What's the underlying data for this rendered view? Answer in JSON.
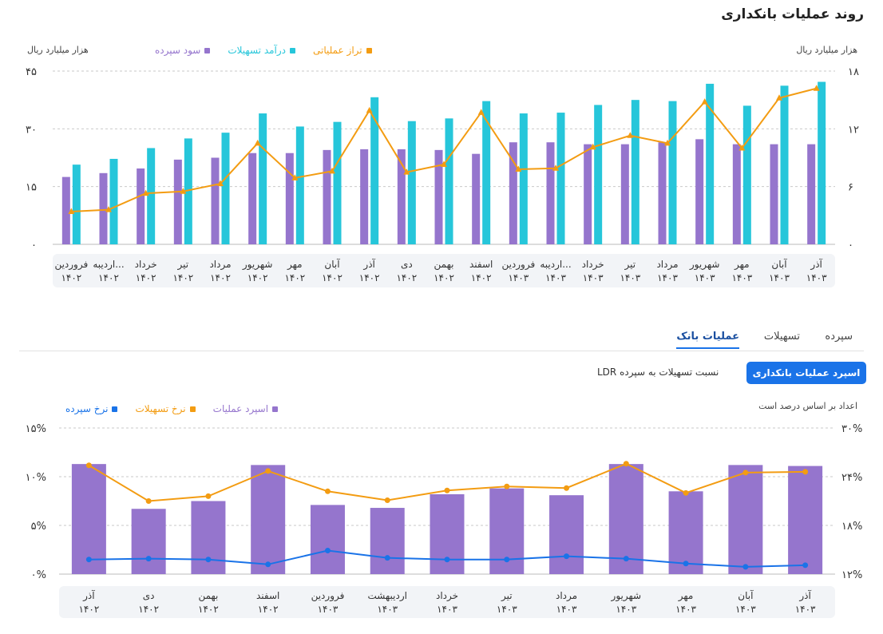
{
  "page": {
    "title": "روند عملیات بانکداری"
  },
  "top": {
    "unit_left": "هزار میلیارد ریال",
    "unit_right": "هزار میلیارد ریال",
    "legend": [
      {
        "label": "تراز عملیاتی",
        "color": "#f39c12"
      },
      {
        "label": "درآمد تسهیلات",
        "color": "#26c6da"
      },
      {
        "label": "سود سپرده",
        "color": "#9575cd"
      }
    ],
    "y_left_ticks": [
      "۰",
      "۱۵",
      "۳۰",
      "۴۵"
    ],
    "y_right_ticks": [
      "۰",
      "۶",
      "۱۲",
      "۱۸"
    ]
  },
  "tabs": [
    {
      "label": "سپرده"
    },
    {
      "label": "تسهیلات"
    },
    {
      "label": "عملیات بانک",
      "active": true
    }
  ],
  "segment": {
    "active": "اسپرد عملیات بانکداری",
    "other": "نسبت تسهیلات به سپرده LDR"
  },
  "bottom": {
    "unit": "اعداد بر اساس درصد است",
    "legend": [
      {
        "label": "اسپرد عملیات",
        "color": "#9575cd"
      },
      {
        "label": "نرخ تسهیلات",
        "color": "#f39c12"
      },
      {
        "label": "نرخ سپرده",
        "color": "#1a73e8"
      }
    ],
    "y_left_ticks": [
      "۰%",
      "۵%",
      "۱۰%",
      "۱۵%"
    ],
    "y_right_ticks": [
      "۱۲%",
      "۱۸%",
      "۲۴%",
      "۳۰%"
    ]
  },
  "chart_data": [
    {
      "type": "bar",
      "title": "روند عملیات بانکداری",
      "categories": [
        [
          "فروردین",
          "۱۴۰۲"
        ],
        [
          "اردیبه...",
          "۱۴۰۲"
        ],
        [
          "خرداد",
          "۱۴۰۲"
        ],
        [
          "تیر",
          "۱۴۰۲"
        ],
        [
          "مرداد",
          "۱۴۰۲"
        ],
        [
          "شهریور",
          "۱۴۰۲"
        ],
        [
          "مهر",
          "۱۴۰۲"
        ],
        [
          "آبان",
          "۱۴۰۲"
        ],
        [
          "آذر",
          "۱۴۰۲"
        ],
        [
          "دی",
          "۱۴۰۲"
        ],
        [
          "بهمن",
          "۱۴۰۲"
        ],
        [
          "اسفند",
          "۱۴۰۲"
        ],
        [
          "فروردین",
          "۱۴۰۳"
        ],
        [
          "اردیبه...",
          "۱۴۰۳"
        ],
        [
          "خرداد",
          "۱۴۰۳"
        ],
        [
          "تیر",
          "۱۴۰۳"
        ],
        [
          "مرداد",
          "۱۴۰۳"
        ],
        [
          "شهریور",
          "۱۴۰۳"
        ],
        [
          "مهر",
          "۱۴۰۳"
        ],
        [
          "آبان",
          "۱۴۰۳"
        ],
        [
          "آذر",
          "۱۴۰۳"
        ]
      ],
      "series": [
        {
          "name": "سود سپرده",
          "axis": "left",
          "kind": "bar",
          "color": "#9575cd",
          "values": [
            17.5,
            18.5,
            19.7,
            22,
            22.5,
            23.7,
            23.7,
            24.5,
            24.7,
            24.7,
            24.5,
            23.5,
            26.5,
            26.5,
            26,
            26,
            26.5,
            27.3,
            26,
            26,
            26
          ]
        },
        {
          "name": "درآمد تسهیلات",
          "axis": "left",
          "kind": "bar",
          "color": "#26c6da",
          "values": [
            20.7,
            22.2,
            25,
            27.5,
            29,
            34,
            30.6,
            31.8,
            38.2,
            32,
            32.7,
            37.2,
            34,
            34.2,
            36.2,
            37.5,
            37.2,
            41.7,
            36,
            41.2,
            42.2
          ]
        },
        {
          "name": "تراز عملیاتی",
          "axis": "right",
          "kind": "line",
          "color": "#f39c12",
          "values": [
            3.4,
            3.6,
            5.3,
            5.5,
            6.3,
            10.5,
            6.9,
            7.6,
            13.9,
            7.5,
            8.3,
            13.7,
            7.8,
            7.9,
            10.1,
            11.3,
            10.5,
            14.8,
            10,
            15.2,
            16.2
          ]
        }
      ],
      "ylim_left": [
        0,
        45
      ],
      "ylim_right": [
        0,
        18
      ],
      "ylabel": "هزار میلیارد ریال",
      "grid": true
    },
    {
      "type": "bar",
      "categories": [
        [
          "آذر",
          "۱۴۰۲"
        ],
        [
          "دی",
          "۱۴۰۲"
        ],
        [
          "بهمن",
          "۱۴۰۲"
        ],
        [
          "اسفند",
          "۱۴۰۲"
        ],
        [
          "فروردین",
          "۱۴۰۳"
        ],
        [
          "اردیبهشت",
          "۱۴۰۳"
        ],
        [
          "خرداد",
          "۱۴۰۳"
        ],
        [
          "تیر",
          "۱۴۰۳"
        ],
        [
          "مرداد",
          "۱۴۰۳"
        ],
        [
          "شهریور",
          "۱۴۰۳"
        ],
        [
          "مهر",
          "۱۴۰۳"
        ],
        [
          "آبان",
          "۱۴۰۳"
        ],
        [
          "آذر",
          "۱۴۰۳"
        ]
      ],
      "series": [
        {
          "name": "اسپرد عملیات",
          "axis": "left",
          "kind": "bar",
          "color": "#9575cd",
          "values": [
            11.3,
            6.7,
            7.5,
            11.2,
            7.1,
            6.8,
            8.2,
            8.8,
            8.1,
            11.3,
            8.5,
            11.2,
            11.1
          ]
        },
        {
          "name": "نرخ تسهیلات",
          "axis": "right",
          "kind": "line",
          "color": "#f39c12",
          "values": [
            25.4,
            21,
            21.6,
            24.7,
            22.2,
            21.1,
            22.3,
            22.8,
            22.6,
            25.6,
            22,
            24.5,
            24.6
          ]
        },
        {
          "name": "نرخ سپرده",
          "axis": "right",
          "kind": "line",
          "color": "#1a73e8",
          "values": [
            13.8,
            13.9,
            13.8,
            13.2,
            14.9,
            14,
            13.8,
            13.8,
            14.2,
            13.9,
            13.3,
            12.9,
            13.1
          ]
        }
      ],
      "ylim_left": [
        0,
        15
      ],
      "ylim_right": [
        12,
        30
      ],
      "grid": true
    }
  ]
}
